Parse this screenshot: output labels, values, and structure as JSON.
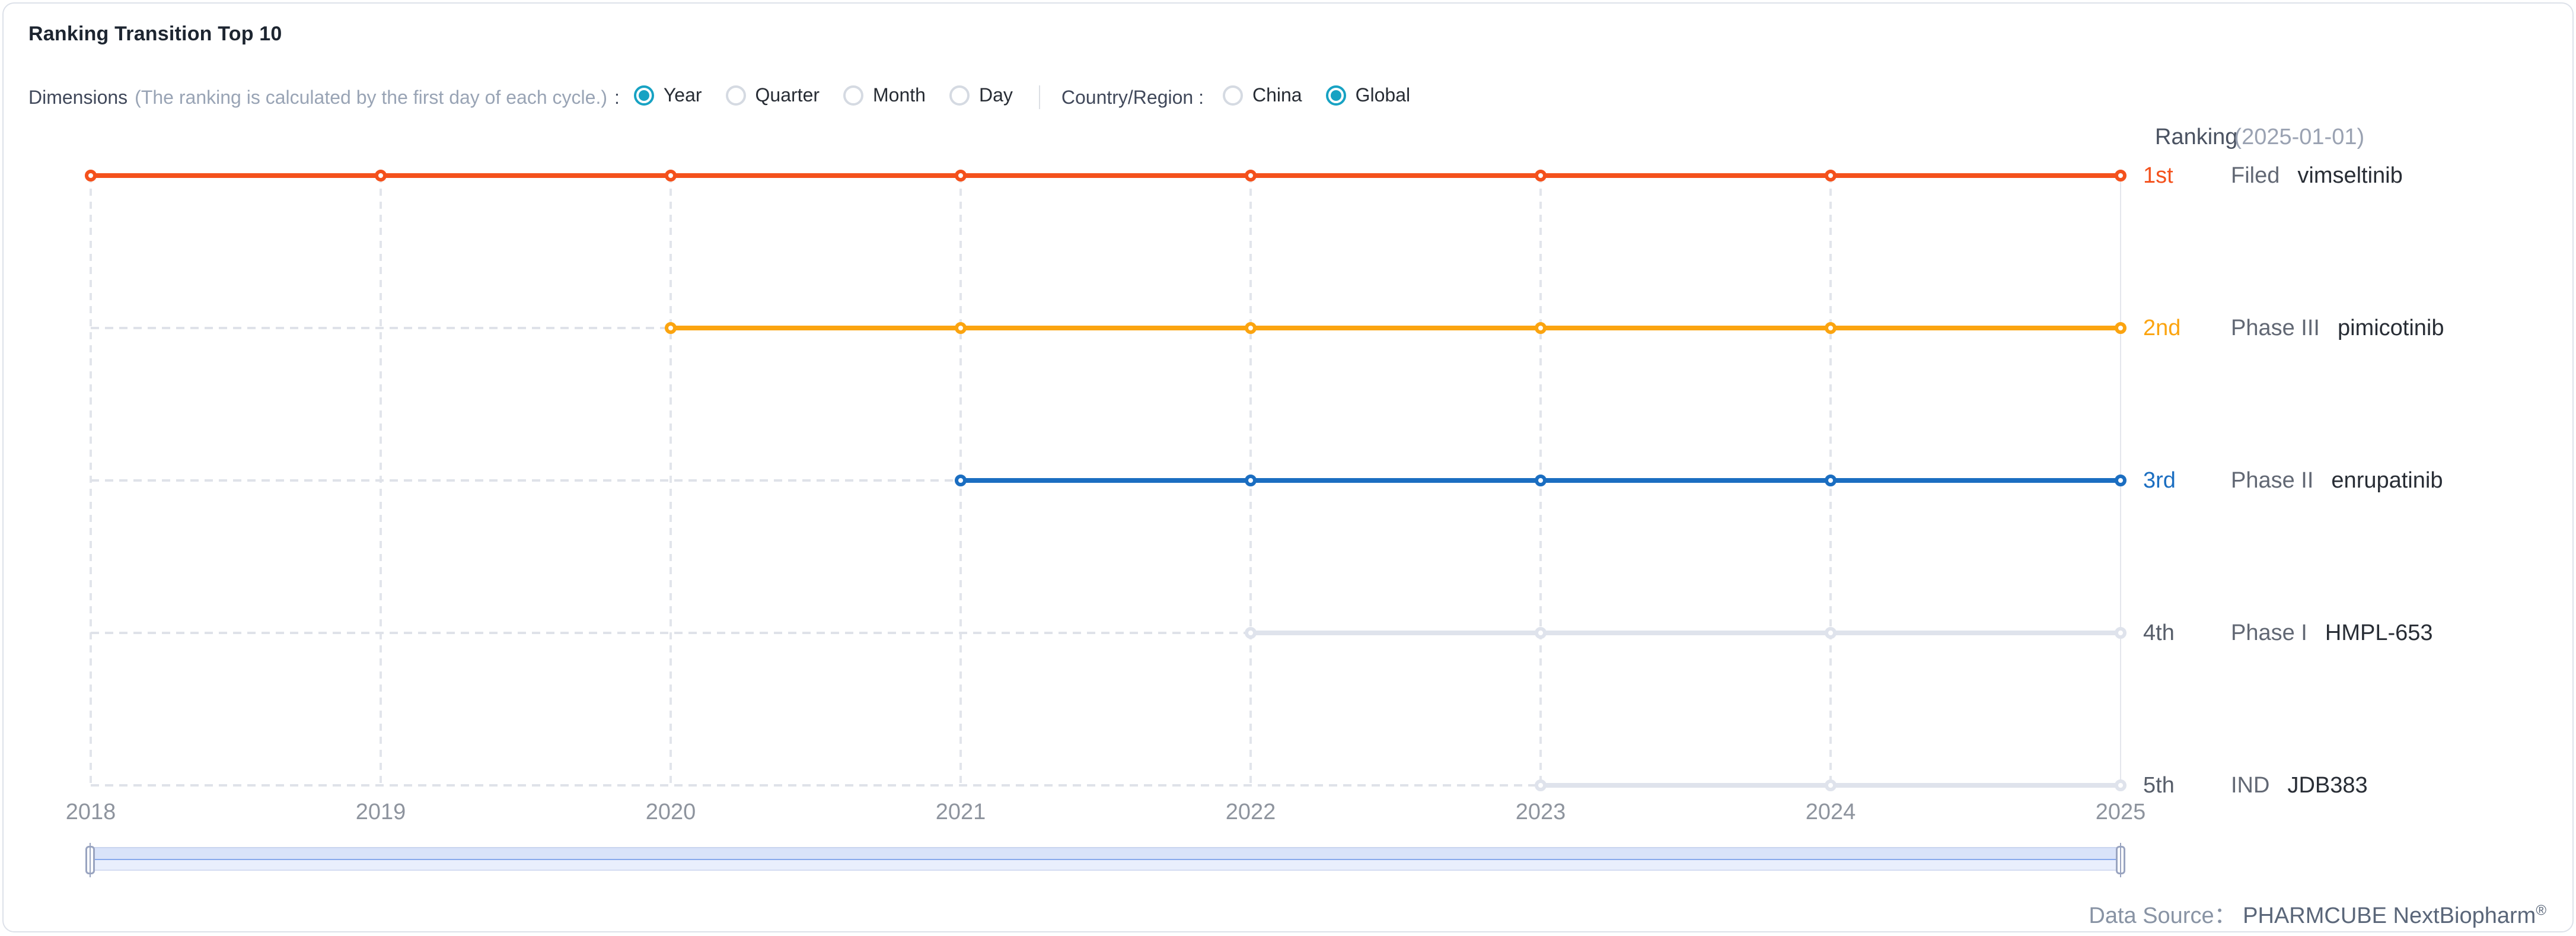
{
  "card": {
    "title": "Ranking Transition Top 10",
    "data_source_label": "Data Source：",
    "data_source_value": "PHARMCUBE NextBiopharm",
    "data_source_reg": "®"
  },
  "controls": {
    "dimensions_label": "Dimensions",
    "dimensions_note": "(The ranking is calculated by the first day of each cycle.)",
    "colon": ":",
    "dimension_options": [
      {
        "label": "Year",
        "selected": true
      },
      {
        "label": "Quarter",
        "selected": false
      },
      {
        "label": "Month",
        "selected": false
      },
      {
        "label": "Day",
        "selected": false
      }
    ],
    "region_label": "Country/Region :",
    "region_options": [
      {
        "label": "China",
        "selected": false
      },
      {
        "label": "Global",
        "selected": true
      }
    ]
  },
  "legend": {
    "header_main": "Ranking",
    "header_date": "(2025-01-01)"
  },
  "chart_data": {
    "type": "line",
    "title": "Ranking Transition Top 10",
    "x": [
      2018,
      2019,
      2020,
      2021,
      2022,
      2023,
      2024,
      2025
    ],
    "x_axis_labels": [
      "2018",
      "2019",
      "2020",
      "2021",
      "2022",
      "2023",
      "2024",
      "2025"
    ],
    "ylabel": "rank",
    "ylim": [
      1,
      5
    ],
    "grid": true,
    "gridline_style": "dashed-vertical",
    "legend_position": "right",
    "legend_date": "2025-01-01",
    "no_data_style": "gray-dashed-left-of-first-point",
    "series": [
      {
        "rank": 1,
        "rank_label": "1st",
        "phase": "Filed",
        "drug": "vimseltinib",
        "color": "#f4511c",
        "label_color": "#f4511c",
        "start_year": 2018,
        "end_year": 2025,
        "values": [
          1,
          1,
          1,
          1,
          1,
          1,
          1,
          1
        ]
      },
      {
        "rank": 2,
        "rank_label": "2nd",
        "phase": "Phase III",
        "drug": "pimicotinib",
        "color": "#fba410",
        "label_color": "#fba410",
        "start_year": 2020,
        "end_year": 2025,
        "values": [
          2,
          2,
          2,
          2,
          2,
          2
        ]
      },
      {
        "rank": 3,
        "rank_label": "3rd",
        "phase": "Phase II",
        "drug": "enrupatinib",
        "color": "#1b6ec1",
        "label_color": "#1b6ec1",
        "start_year": 2021,
        "end_year": 2025,
        "values": [
          3,
          3,
          3,
          3,
          3
        ]
      },
      {
        "rank": 4,
        "rank_label": "4th",
        "phase": "Phase I",
        "drug": "HMPL-653",
        "color": "#dfe3ec",
        "label_color": "#575e6a",
        "start_year": 2022,
        "end_year": 2025,
        "values": [
          4,
          4,
          4,
          4
        ]
      },
      {
        "rank": 5,
        "rank_label": "5th",
        "phase": "IND",
        "drug": "JDB383",
        "color": "#dfe3ec",
        "label_color": "#575e6a",
        "start_year": 2023,
        "end_year": 2025,
        "values": [
          5,
          5,
          5
        ]
      }
    ]
  }
}
